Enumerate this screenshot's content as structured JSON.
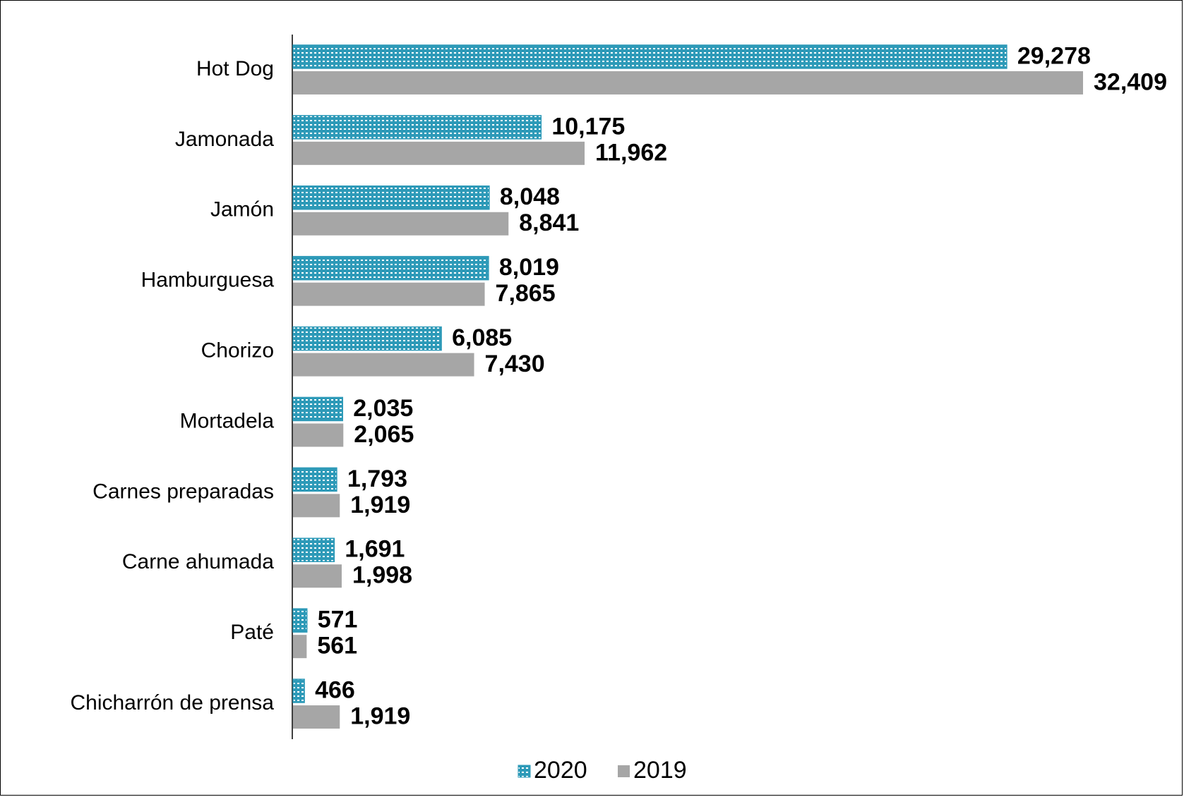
{
  "chart_data": {
    "type": "bar",
    "orientation": "horizontal",
    "categories": [
      "Hot Dog",
      "Jamonada",
      "Jamón",
      "Hamburguesa",
      "Chorizo",
      "Mortadela",
      "Carnes preparadas",
      "Carne ahumada",
      "Paté",
      "Chicharrón de prensa"
    ],
    "series": [
      {
        "name": "2020",
        "color": "#2e9ab8",
        "pattern": "dotted",
        "values": [
          29278,
          10175,
          8048,
          8019,
          6085,
          2035,
          1793,
          1691,
          571,
          466
        ],
        "labels": [
          "29,278",
          "10,175",
          "8,048",
          "8,019",
          "6,085",
          "2,035",
          "1,793",
          "1,691",
          "571",
          "466"
        ]
      },
      {
        "name": "2019",
        "color": "#a6a6a6",
        "pattern": "solid",
        "values": [
          32409,
          11962,
          8841,
          7865,
          7430,
          2065,
          1919,
          1998,
          561,
          1919
        ],
        "labels": [
          "32,409",
          "11,962",
          "8,841",
          "7,865",
          "7,430",
          "2,065",
          "1,919",
          "1,998",
          "561",
          "1,919"
        ]
      }
    ],
    "xlim": [
      0,
      32409
    ],
    "grid": false,
    "legend_position": "bottom"
  }
}
